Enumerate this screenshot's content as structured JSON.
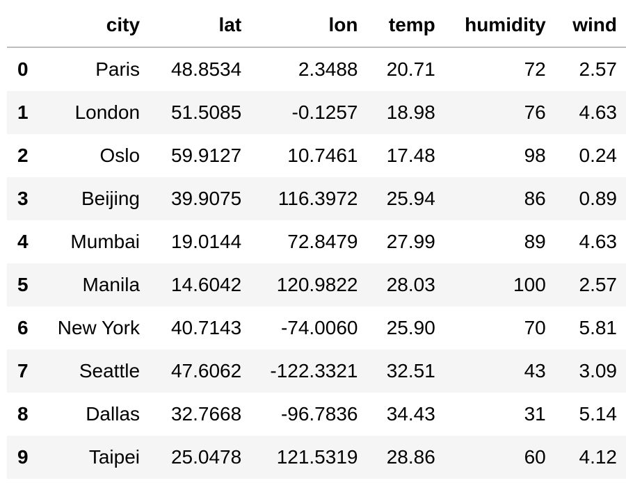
{
  "table": {
    "index_header": "",
    "columns": [
      "city",
      "lat",
      "lon",
      "temp",
      "humidity",
      "wind"
    ],
    "rows": [
      {
        "index": "0",
        "city": "Paris",
        "lat": "48.8534",
        "lon": "2.3488",
        "temp": "20.71",
        "humidity": "72",
        "wind": "2.57"
      },
      {
        "index": "1",
        "city": "London",
        "lat": "51.5085",
        "lon": "-0.1257",
        "temp": "18.98",
        "humidity": "76",
        "wind": "4.63"
      },
      {
        "index": "2",
        "city": "Oslo",
        "lat": "59.9127",
        "lon": "10.7461",
        "temp": "17.48",
        "humidity": "98",
        "wind": "0.24"
      },
      {
        "index": "3",
        "city": "Beijing",
        "lat": "39.9075",
        "lon": "116.3972",
        "temp": "25.94",
        "humidity": "86",
        "wind": "0.89"
      },
      {
        "index": "4",
        "city": "Mumbai",
        "lat": "19.0144",
        "lon": "72.8479",
        "temp": "27.99",
        "humidity": "89",
        "wind": "4.63"
      },
      {
        "index": "5",
        "city": "Manila",
        "lat": "14.6042",
        "lon": "120.9822",
        "temp": "28.03",
        "humidity": "100",
        "wind": "2.57"
      },
      {
        "index": "6",
        "city": "New York",
        "lat": "40.7143",
        "lon": "-74.0060",
        "temp": "25.90",
        "humidity": "70",
        "wind": "5.81"
      },
      {
        "index": "7",
        "city": "Seattle",
        "lat": "47.6062",
        "lon": "-122.3321",
        "temp": "32.51",
        "humidity": "43",
        "wind": "3.09"
      },
      {
        "index": "8",
        "city": "Dallas",
        "lat": "32.7668",
        "lon": "-96.7836",
        "temp": "34.43",
        "humidity": "31",
        "wind": "5.14"
      },
      {
        "index": "9",
        "city": "Taipei",
        "lat": "25.0478",
        "lon": "121.5319",
        "temp": "28.86",
        "humidity": "60",
        "wind": "4.12"
      }
    ]
  },
  "colors": {
    "header_rule": "#bdbdbd",
    "stripe": "#f5f5f5",
    "background": "#ffffff",
    "text": "#000000"
  }
}
